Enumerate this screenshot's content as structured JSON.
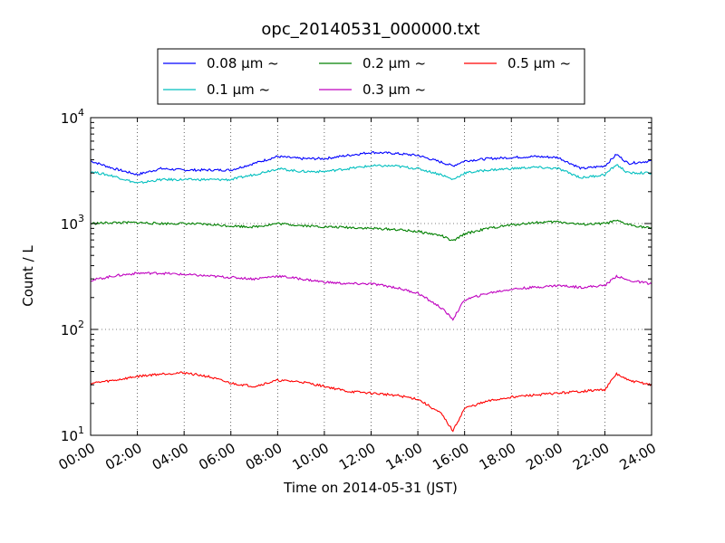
{
  "chart_data": {
    "type": "line",
    "title": "opc_20140531_000000.txt",
    "xlabel": "Time on 2014-05-31 (JST)",
    "ylabel": "Count / L",
    "yscale": "log",
    "ylim": [
      10,
      10000
    ],
    "xlim": [
      "00:00",
      "24:00"
    ],
    "grid": true,
    "legend_position": "top",
    "x_ticks": [
      "00:00",
      "02:00",
      "04:00",
      "06:00",
      "08:00",
      "10:00",
      "12:00",
      "14:00",
      "16:00",
      "18:00",
      "20:00",
      "22:00",
      "24:00"
    ],
    "y_ticks": [
      {
        "base": "10",
        "exp": "1"
      },
      {
        "base": "10",
        "exp": "2"
      },
      {
        "base": "10",
        "exp": "3"
      },
      {
        "base": "10",
        "exp": "4"
      }
    ],
    "x": [
      "00:00",
      "01:00",
      "02:00",
      "03:00",
      "04:00",
      "05:00",
      "06:00",
      "07:00",
      "08:00",
      "09:00",
      "10:00",
      "11:00",
      "12:00",
      "13:00",
      "14:00",
      "15:00",
      "15:30",
      "16:00",
      "17:00",
      "18:00",
      "19:00",
      "20:00",
      "21:00",
      "22:00",
      "22:30",
      "23:00",
      "24:00"
    ],
    "series": [
      {
        "name": "0.08",
        "unit": "μm ~",
        "color": "#0000ff",
        "values": [
          3900,
          3300,
          2900,
          3300,
          3200,
          3200,
          3200,
          3700,
          4300,
          4100,
          4100,
          4400,
          4700,
          4600,
          4400,
          3800,
          3500,
          3900,
          4100,
          4200,
          4300,
          4200,
          3300,
          3500,
          4500,
          3700,
          3900
        ]
      },
      {
        "name": "0.1",
        "unit": "μm ~",
        "color": "#00bfbf",
        "values": [
          3100,
          2800,
          2400,
          2600,
          2600,
          2600,
          2600,
          2900,
          3300,
          3100,
          3100,
          3300,
          3500,
          3500,
          3300,
          2900,
          2600,
          3000,
          3200,
          3300,
          3400,
          3300,
          2700,
          2900,
          3600,
          3000,
          3000
        ]
      },
      {
        "name": "0.2",
        "unit": "μm ~",
        "color": "#008000",
        "values": [
          1000,
          1020,
          1020,
          1000,
          1000,
          980,
          950,
          930,
          1000,
          960,
          930,
          920,
          900,
          880,
          840,
          770,
          680,
          800,
          900,
          970,
          1020,
          1040,
          980,
          1000,
          1060,
          980,
          900
        ]
      },
      {
        "name": "0.3",
        "unit": "μm ~",
        "color": "#bf00bf",
        "values": [
          290,
          320,
          340,
          340,
          330,
          320,
          310,
          300,
          320,
          300,
          280,
          270,
          270,
          250,
          220,
          160,
          125,
          190,
          220,
          240,
          250,
          260,
          250,
          260,
          320,
          290,
          270
        ]
      },
      {
        "name": "0.5",
        "unit": "μm ~",
        "color": "#ff0000",
        "values": [
          31,
          33,
          36,
          38,
          39,
          36,
          31,
          29,
          33,
          32,
          29,
          26,
          25,
          24,
          22,
          16,
          11,
          18,
          21,
          23,
          24,
          25,
          26,
          27,
          38,
          33,
          30
        ]
      }
    ]
  }
}
